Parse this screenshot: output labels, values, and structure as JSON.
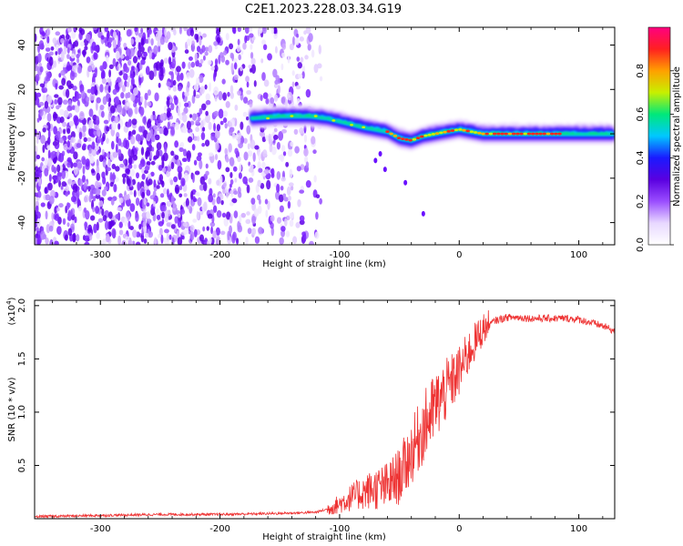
{
  "figure": {
    "title": "C2E1.2023.228.03.34.G19"
  },
  "chart_data": [
    {
      "type": "heatmap",
      "name": "spectrogram",
      "title": "C2E1.2023.228.03.34.G19",
      "xlabel": "Height of straight line (km)",
      "ylabel": "Frequency (Hz)",
      "xlim": [
        -355,
        130
      ],
      "ylim": [
        -50,
        48
      ],
      "xticks": [
        -300,
        -200,
        -100,
        0,
        100
      ],
      "xtick_labels": [
        "-300",
        "-200",
        "-100",
        "0",
        "100"
      ],
      "yticks": [
        -40,
        -20,
        0,
        20,
        40
      ],
      "ytick_labels": [
        "-40",
        "-20",
        "0",
        "20",
        "40"
      ],
      "colorbar": {
        "label": "Normalized spectral amplitude",
        "range": [
          0,
          1
        ],
        "ticks": [
          0.0,
          0.2,
          0.4,
          0.6,
          0.8
        ],
        "tick_labels": [
          "0.0",
          "0.2",
          "0.4",
          "0.6",
          "0.8"
        ],
        "colormap": [
          "#ffffff",
          "#e8d8ff",
          "#9a4dff",
          "#5a00e0",
          "#1a1aff",
          "#00c8ff",
          "#00e87a",
          "#c8f000",
          "#ffa000",
          "#ff2020",
          "#ff0080"
        ]
      },
      "trace": {
        "description_points_x": [
          -175,
          -150,
          -125,
          -110,
          -95,
          -80,
          -70,
          -60,
          -50,
          -40,
          -30,
          -20,
          -10,
          0,
          10,
          20,
          30,
          40,
          60,
          80,
          100,
          130
        ],
        "description_points_y": [
          7,
          8,
          8,
          7,
          5,
          3,
          2,
          1,
          -2,
          -3,
          -1,
          0,
          1,
          2,
          1,
          0,
          0,
          0,
          0,
          0,
          0,
          0
        ]
      }
    },
    {
      "type": "line",
      "name": "snr",
      "xlabel": "Height of straight line (km)",
      "ylabel": "SNR (10 * v/v)",
      "exponent_label": "(x10",
      "exponent_power": "4",
      "exponent_close": ")",
      "xlim": [
        -355,
        130
      ],
      "ylim": [
        0,
        2.05
      ],
      "xticks": [
        -300,
        -200,
        -100,
        0,
        100
      ],
      "xtick_labels": [
        "-300",
        "-200",
        "-100",
        "0",
        "100"
      ],
      "yticks": [
        0.5,
        1.0,
        1.5,
        2.0
      ],
      "ytick_labels": [
        "0.5",
        "1.0",
        "1.5",
        "2.0"
      ],
      "series": [
        {
          "name": "SNR",
          "color": "#ee3333",
          "x": [
            -355,
            -300,
            -250,
            -200,
            -150,
            -120,
            -110,
            -100,
            -90,
            -80,
            -70,
            -60,
            -50,
            -40,
            -30,
            -20,
            -10,
            0,
            10,
            20,
            30,
            40,
            50,
            60,
            70,
            80,
            90,
            100,
            110,
            120,
            130
          ],
          "y": [
            0.02,
            0.03,
            0.04,
            0.04,
            0.05,
            0.06,
            0.09,
            0.14,
            0.2,
            0.25,
            0.28,
            0.3,
            0.4,
            0.62,
            0.85,
            1.05,
            1.22,
            1.38,
            1.6,
            1.78,
            1.86,
            1.89,
            1.89,
            1.88,
            1.88,
            1.88,
            1.88,
            1.87,
            1.84,
            1.81,
            1.76
          ]
        }
      ]
    }
  ]
}
